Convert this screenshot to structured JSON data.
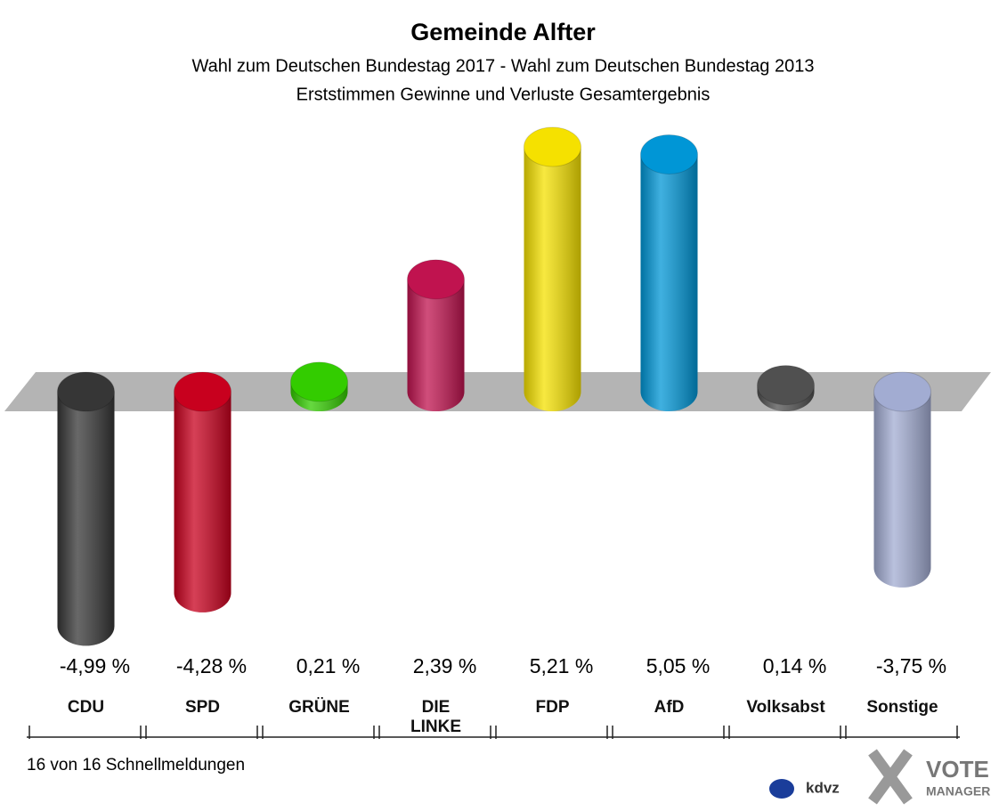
{
  "chart_data": {
    "type": "bar",
    "title": "Gemeinde Alfter",
    "subtitle": [
      "Wahl zum Deutschen Bundestag 2017 - Wahl zum Deutschen Bundestag 2013",
      "Erststimmen Gewinne und Verluste Gesamtergebnis"
    ],
    "categories": [
      "CDU",
      "SPD",
      "GRÜNE",
      "DIE\nLINKE",
      "FDP",
      "AfD",
      "Volksabst",
      "Sonstige"
    ],
    "values": [
      -4.99,
      -4.28,
      0.21,
      2.39,
      5.21,
      5.05,
      0.14,
      -3.75
    ],
    "value_labels": [
      "-4,99 %",
      "-4,28 %",
      "0,21 %",
      "2,39 %",
      "5,21 %",
      "5,05 %",
      "0,14 %",
      "-3,75 %"
    ],
    "colors": [
      "#363636",
      "#c8001e",
      "#33cc00",
      "#c0134f",
      "#f5e100",
      "#0096d6",
      "#505050",
      "#a2acd2"
    ],
    "footer": "16 von 16 Schnellmeldungen",
    "logos": [
      "kdvz",
      "VOTE",
      "MANAGER"
    ]
  }
}
